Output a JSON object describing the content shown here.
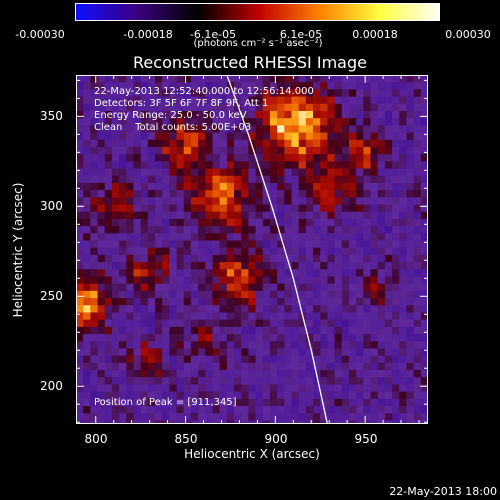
{
  "colorbar": {
    "ticks": [
      "-0.00030",
      "-0.00018",
      "-6.1e-05",
      "6.1e-05",
      "0.00018",
      "0.00030"
    ],
    "units": "(photons cm⁻² s⁻¹ asec⁻²)",
    "colors": [
      "#1010ff",
      "#3a0080",
      "#000000",
      "#c00000",
      "#ff8000",
      "#ffff40",
      "#ffffff"
    ]
  },
  "title": "Reconstructed RHESSI Image",
  "annotations": {
    "time": "22-May-2013 12:52:40.000 to 12:56:14.000",
    "detectors": "Detectors: 3F 5F 6F 7F 8F 9F, Att 1",
    "energy": "Energy Range: 25.0 - 50.0 keV",
    "clean": "Clean    Total counts: 5.00E+03",
    "peak": "Position of Peak = [911,345]"
  },
  "footer": "22-May-2013 18:00",
  "chart_data": {
    "type": "heatmap",
    "title": "Reconstructed RHESSI Image",
    "xlabel": "Heliocentric X (arcsec)",
    "ylabel": "Heliocentric Y (arcsec)",
    "xlim": [
      789,
      985
    ],
    "ylim": [
      179,
      373
    ],
    "xticks": [
      "800",
      "850",
      "900",
      "950"
    ],
    "xtick_values": [
      800,
      850,
      900,
      950
    ],
    "yticks": [
      "200",
      "250",
      "300",
      "350"
    ],
    "ytick_values": [
      200,
      250,
      300,
      350
    ],
    "clim": [
      -0.0003,
      0.0003
    ],
    "peak": [
      911,
      345
    ],
    "limb": [
      [
        873,
        373
      ],
      [
        885,
        340
      ],
      [
        898,
        300
      ],
      [
        910,
        260
      ],
      [
        920,
        220
      ],
      [
        929,
        179
      ]
    ],
    "sources": [
      {
        "x": 911,
        "y": 345,
        "r": 14,
        "amp": 1.0
      },
      {
        "x": 792,
        "y": 246,
        "r": 10,
        "amp": 0.9
      },
      {
        "x": 870,
        "y": 305,
        "r": 12,
        "amp": 0.7
      },
      {
        "x": 850,
        "y": 335,
        "r": 10,
        "amp": 0.55
      },
      {
        "x": 880,
        "y": 260,
        "r": 10,
        "amp": 0.6
      },
      {
        "x": 830,
        "y": 265,
        "r": 9,
        "amp": 0.45
      },
      {
        "x": 810,
        "y": 300,
        "r": 9,
        "amp": 0.45
      },
      {
        "x": 930,
        "y": 310,
        "r": 10,
        "amp": 0.5
      },
      {
        "x": 950,
        "y": 330,
        "r": 8,
        "amp": 0.45
      },
      {
        "x": 828,
        "y": 215,
        "r": 8,
        "amp": 0.35
      },
      {
        "x": 860,
        "y": 225,
        "r": 8,
        "amp": 0.3
      },
      {
        "x": 955,
        "y": 255,
        "r": 7,
        "amp": 0.25
      }
    ]
  }
}
